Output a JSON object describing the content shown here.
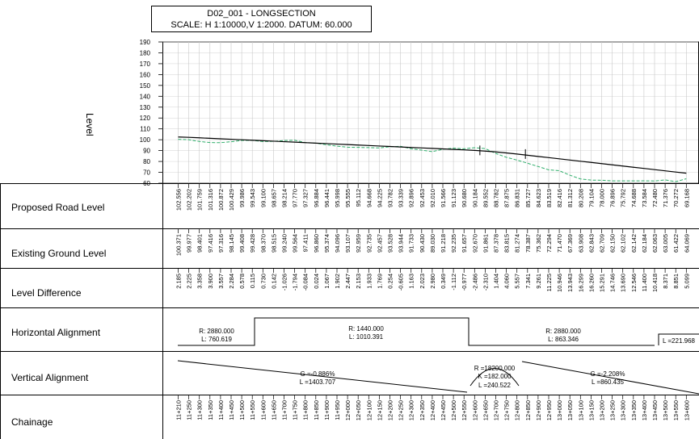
{
  "title": {
    "line1": "D02_001 - LONGSECTION",
    "line2": "SCALE: H 1:10000,V 1:2000. DATUM: 60.000"
  },
  "axis": {
    "label": "Level",
    "ticks": [
      "190",
      "180",
      "170",
      "160",
      "150",
      "140",
      "130",
      "120",
      "110",
      "100",
      "90",
      "80",
      "70",
      "60"
    ]
  },
  "rows": {
    "proposed": "Proposed Road Level",
    "existing": "Existing Ground Level",
    "difference": "Level Difference",
    "horizontal": "Horizontal Alignment",
    "vertical": "Vertical Alignment",
    "chainage": "Chainage"
  },
  "colors": {
    "existing_line": "#2fae6b",
    "proposed_line": "#000000",
    "grid": "#c8c8c8"
  },
  "chart_data": {
    "type": "line",
    "ylabel": "Level",
    "ylim": [
      60,
      190
    ],
    "chainage": [
      "11+210",
      "11+250",
      "11+300",
      "11+350",
      "11+400",
      "11+450",
      "11+500",
      "11+550",
      "11+600",
      "11+650",
      "11+700",
      "11+750",
      "11+800",
      "11+850",
      "11+900",
      "11+950",
      "12+000",
      "12+050",
      "12+100",
      "12+150",
      "12+200",
      "12+250",
      "12+300",
      "12+350",
      "12+400",
      "12+450",
      "12+500",
      "12+550",
      "12+600",
      "12+650",
      "12+700",
      "12+750",
      "12+800",
      "12+850",
      "12+900",
      "12+950",
      "13+000",
      "13+050",
      "13+100",
      "13+150",
      "13+200",
      "13+250",
      "13+300",
      "13+350",
      "13+400",
      "13+450",
      "13+500",
      "13+550",
      "13+600"
    ],
    "proposed": [
      "102.556",
      "102.202",
      "101.759",
      "101.316",
      "100.872",
      "100.429",
      "99.986",
      "99.543",
      "99.100",
      "98.657",
      "98.214",
      "97.770",
      "97.327",
      "96.884",
      "96.441",
      "95.998",
      "95.555",
      "95.112",
      "94.668",
      "94.225",
      "93.782",
      "93.339",
      "92.896",
      "92.453",
      "92.010",
      "91.566",
      "91.123",
      "90.680",
      "90.184",
      "89.552",
      "88.782",
      "87.875",
      "86.831",
      "85.727",
      "84.623",
      "83.519",
      "82.416",
      "81.312",
      "80.208",
      "79.104",
      "78.000",
      "76.896",
      "75.792",
      "74.688",
      "73.584",
      "72.480",
      "71.376",
      "70.272",
      "69.168"
    ],
    "existing": [
      "100.371",
      "99.977",
      "98.401",
      "97.416",
      "97.316",
      "98.145",
      "99.408",
      "99.428",
      "98.370",
      "98.515",
      "99.240",
      "99.564",
      "97.411",
      "96.860",
      "95.374",
      "94.096",
      "93.107",
      "92.959",
      "92.735",
      "92.457",
      "93.528",
      "93.944",
      "91.733",
      "90.430",
      "89.030",
      "91.218",
      "92.235",
      "91.657",
      "92.670",
      "91.861",
      "87.378",
      "83.815",
      "81.274",
      "78.387",
      "75.362",
      "72.294",
      "71.470",
      "67.369",
      "63.908",
      "62.843",
      "62.709",
      "62.150",
      "62.102",
      "62.142",
      "62.184",
      "62.063",
      "63.005",
      "61.422",
      "64.069"
    ],
    "difference": [
      "2.185",
      "2.225",
      "3.358",
      "3.900",
      "3.557",
      "2.284",
      "0.578",
      "0.115",
      "0.730",
      "0.142",
      "-1.026",
      "-1.794",
      "-0.084",
      "0.024",
      "1.067",
      "1.902",
      "2.447",
      "2.153",
      "1.933",
      "1.769",
      "0.254",
      "-0.605",
      "1.163",
      "2.023",
      "2.980",
      "0.349",
      "-1.112",
      "-0.977",
      "-2.486",
      "-2.310",
      "1.404",
      "4.060",
      "5.557",
      "7.341",
      "9.261",
      "11.225",
      "10.946",
      "13.943",
      "16.299",
      "16.260",
      "15.291",
      "14.746",
      "13.690",
      "12.546",
      "11.400",
      "10.418",
      "8.371",
      "8.851",
      "5.099"
    ]
  },
  "horizontal_alignment": [
    {
      "r": "R: 2880.000",
      "l": "L: 760.619"
    },
    {
      "r": "R: 1440.000",
      "l": "L: 1010.391"
    },
    {
      "r": "R: 2880.000",
      "l": "L: 863.346"
    },
    {
      "r": "",
      "l": "L =221.968"
    }
  ],
  "vertical_alignment": [
    {
      "g": "G =-0.886%",
      "l": "L =1403.707"
    },
    {
      "r": "R =18200.000",
      "k": "K =182.000",
      "l": "L =240.522"
    },
    {
      "g": "G =-2.208%",
      "l": "L =860.435"
    }
  ]
}
